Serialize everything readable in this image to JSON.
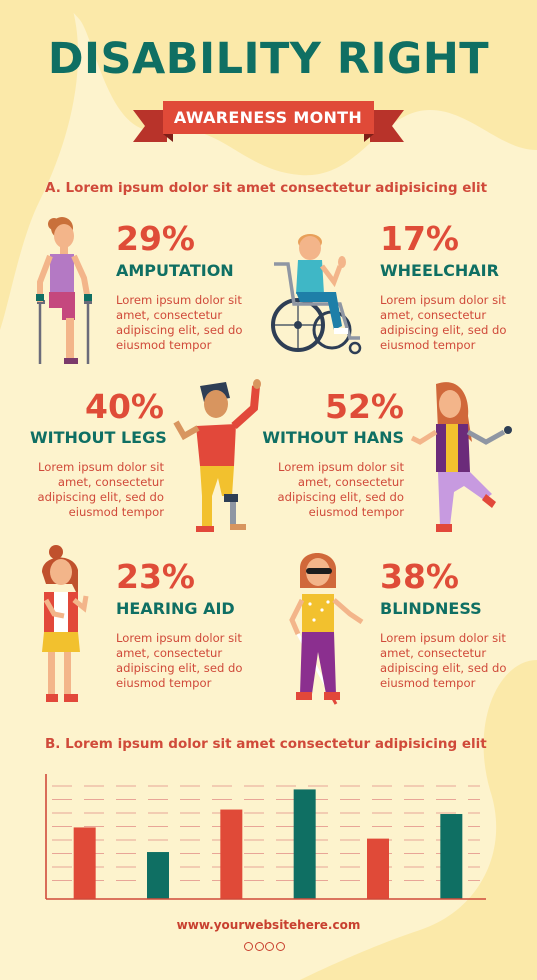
{
  "title": "DISABILITY RIGHT",
  "subtitle": "AWARENESS MONTH",
  "section_a": {
    "heading": "A. Lorem ipsum dolor sit amet consectetur adipisicing elit"
  },
  "section_b": {
    "heading": "B. Lorem ipsum dolor sit amet consectetur adipisicing elit"
  },
  "stats": [
    {
      "percent": "29%",
      "label": "AMPUTATION",
      "text": "Lorem ipsum dolor sit amet, consectetur adipiscing elit, sed do eiusmod tempor"
    },
    {
      "percent": "17%",
      "label": "WHEELCHAIR",
      "text": "Lorem ipsum dolor sit amet, consectetur adipiscing elit, sed do eiusmod tempor"
    },
    {
      "percent": "40%",
      "label": "WITHOUT LEGS",
      "text": "Lorem ipsum dolor sit amet, consectetur adipiscing elit, sed do eiusmod tempor"
    },
    {
      "percent": "52%",
      "label": "WITHOUT HANS",
      "text": "Lorem ipsum dolor sit amet, consectetur adipiscing elit, sed do eiusmod tempor"
    },
    {
      "percent": "23%",
      "label": "HEARING AID",
      "text": "Lorem ipsum dolor sit amet, consectetur adipiscing elit, sed do eiusmod tempor"
    },
    {
      "percent": "38%",
      "label": "BLINDNESS",
      "text": "Lorem ipsum dolor sit amet, consectetur adipiscing elit, sed do eiusmod tempor"
    }
  ],
  "chart_data": {
    "type": "bar",
    "values": [
      64,
      42,
      80,
      98,
      54,
      76
    ],
    "ylim": [
      0,
      110
    ],
    "grid": true,
    "colors": [
      "#e04a38",
      "#0f6f63",
      "#e04a38",
      "#0f6f63",
      "#e04a38",
      "#0f6f63"
    ]
  },
  "footer": {
    "website": "www.yourwebsitehere.com",
    "dot_count": 4
  },
  "colors": {
    "teal": "#0f6f63",
    "red": "#df4c38",
    "background": "#fdf3cd",
    "blob": "#fbe9a9"
  }
}
